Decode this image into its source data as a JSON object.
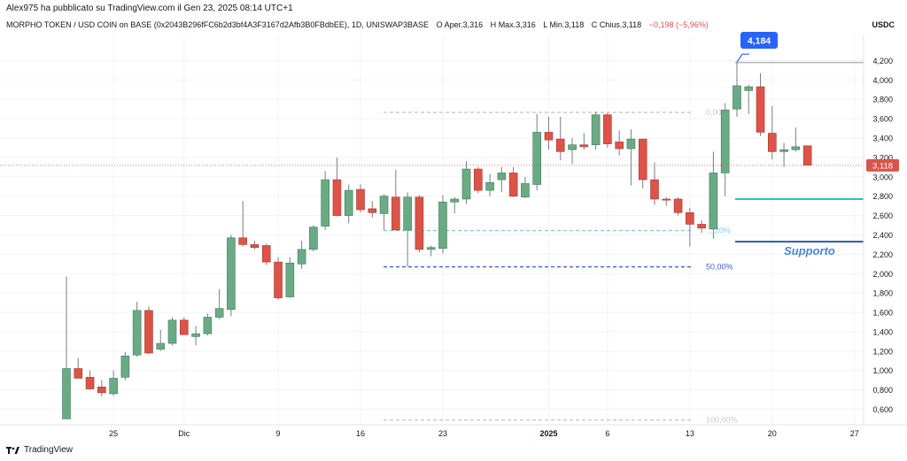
{
  "header": {
    "published_by": "Alex975 ha pubblicato su TradingView.com il Gen 23, 2025 08:14 UTC+1",
    "symbol": "MORPHO TOKEN / USD COIN on BASE (0x2043B296fFC6b2d3bf4A3F3167d2Afb3B0FBdbEE), 1D, UNISWAP3BASE",
    "open_label": "O",
    "open_value": "Aper.3,316",
    "high_label": "H",
    "high_value": "Max.3,316",
    "low_label": "L",
    "low_value": "Min.3,118",
    "close_label": "C",
    "close_value": "Chius.3,118",
    "change": "−0,198 (−5,96%)",
    "currency": "USDC"
  },
  "footer": {
    "brand": "TradingView",
    "brand_icon": "tradingview-logo-icon"
  },
  "colors": {
    "up": "#6aaa84",
    "down": "#dc5348",
    "support": "#2f5aa8",
    "teal": "#2cc3b5",
    "fib_blue": "#3a66c4"
  },
  "chart_data": {
    "type": "candlestick",
    "y_axis_ticks": [
      "4,200",
      "4,000",
      "3,800",
      "3,600",
      "3,400",
      "3,200",
      "3,000",
      "2,800",
      "2,600",
      "2,400",
      "2,200",
      "2,000",
      "1,800",
      "1,600",
      "1,400",
      "1,200",
      "1,000",
      "0,800",
      "0,600"
    ],
    "y_axis_values": [
      4.2,
      4.0,
      3.8,
      3.6,
      3.4,
      3.2,
      3.0,
      2.8,
      2.6,
      2.4,
      2.2,
      2.0,
      1.8,
      1.6,
      1.4,
      1.2,
      1.0,
      0.8,
      0.6
    ],
    "ylim": [
      0.44,
      4.46
    ],
    "x_axis_ticks": [
      {
        "label": "25",
        "index": 4
      },
      {
        "label": "Dic",
        "index": 10
      },
      {
        "label": "9",
        "index": 18
      },
      {
        "label": "16",
        "index": 25
      },
      {
        "label": "23",
        "index": 32
      },
      {
        "label": "2025",
        "index": 41,
        "bold": true
      },
      {
        "label": "6",
        "index": 46
      },
      {
        "label": "13",
        "index": 53
      },
      {
        "label": "20",
        "index": 60
      },
      {
        "label": "27",
        "index": 67
      }
    ],
    "candles": [
      {
        "o": 0.5,
        "h": 1.97,
        "l": 0.5,
        "c": 1.02
      },
      {
        "o": 1.02,
        "h": 1.13,
        "l": 0.93,
        "c": 0.92
      },
      {
        "o": 0.93,
        "h": 1.0,
        "l": 0.8,
        "c": 0.81
      },
      {
        "o": 0.83,
        "h": 0.9,
        "l": 0.73,
        "c": 0.77
      },
      {
        "o": 0.76,
        "h": 1.0,
        "l": 0.74,
        "c": 0.92
      },
      {
        "o": 0.93,
        "h": 1.19,
        "l": 0.9,
        "c": 1.15
      },
      {
        "o": 1.16,
        "h": 1.71,
        "l": 1.14,
        "c": 1.62
      },
      {
        "o": 1.62,
        "h": 1.66,
        "l": 1.17,
        "c": 1.18
      },
      {
        "o": 1.22,
        "h": 1.42,
        "l": 1.2,
        "c": 1.28
      },
      {
        "o": 1.28,
        "h": 1.55,
        "l": 1.26,
        "c": 1.52
      },
      {
        "o": 1.52,
        "h": 1.55,
        "l": 1.37,
        "c": 1.37
      },
      {
        "o": 1.35,
        "h": 1.46,
        "l": 1.26,
        "c": 1.38
      },
      {
        "o": 1.38,
        "h": 1.59,
        "l": 1.36,
        "c": 1.55
      },
      {
        "o": 1.55,
        "h": 1.84,
        "l": 1.53,
        "c": 1.64
      },
      {
        "o": 1.63,
        "h": 2.4,
        "l": 1.56,
        "c": 2.37
      },
      {
        "o": 2.37,
        "h": 2.75,
        "l": 2.28,
        "c": 2.3
      },
      {
        "o": 2.3,
        "h": 2.34,
        "l": 2.25,
        "c": 2.27
      },
      {
        "o": 2.29,
        "h": 2.31,
        "l": 2.09,
        "c": 2.12
      },
      {
        "o": 2.12,
        "h": 2.17,
        "l": 1.73,
        "c": 1.75
      },
      {
        "o": 1.76,
        "h": 2.17,
        "l": 1.75,
        "c": 2.11
      },
      {
        "o": 2.1,
        "h": 2.34,
        "l": 2.05,
        "c": 2.25
      },
      {
        "o": 2.25,
        "h": 2.5,
        "l": 2.23,
        "c": 2.48
      },
      {
        "o": 2.49,
        "h": 3.06,
        "l": 2.45,
        "c": 2.97
      },
      {
        "o": 2.97,
        "h": 3.2,
        "l": 2.59,
        "c": 2.6
      },
      {
        "o": 2.6,
        "h": 2.92,
        "l": 2.52,
        "c": 2.86
      },
      {
        "o": 2.87,
        "h": 2.92,
        "l": 2.63,
        "c": 2.66
      },
      {
        "o": 2.67,
        "h": 2.75,
        "l": 2.58,
        "c": 2.63
      },
      {
        "o": 2.62,
        "h": 2.82,
        "l": 2.45,
        "c": 2.8
      },
      {
        "o": 2.79,
        "h": 3.07,
        "l": 2.45,
        "c": 2.45
      },
      {
        "o": 2.45,
        "h": 2.84,
        "l": 2.07,
        "c": 2.79
      },
      {
        "o": 2.79,
        "h": 2.81,
        "l": 2.22,
        "c": 2.25
      },
      {
        "o": 2.25,
        "h": 2.29,
        "l": 2.18,
        "c": 2.27
      },
      {
        "o": 2.26,
        "h": 2.81,
        "l": 2.21,
        "c": 2.74
      },
      {
        "o": 2.74,
        "h": 2.79,
        "l": 2.62,
        "c": 2.77
      },
      {
        "o": 2.77,
        "h": 3.16,
        "l": 2.72,
        "c": 3.08
      },
      {
        "o": 3.08,
        "h": 3.1,
        "l": 2.83,
        "c": 2.86
      },
      {
        "o": 2.86,
        "h": 3.03,
        "l": 2.8,
        "c": 2.94
      },
      {
        "o": 2.97,
        "h": 3.1,
        "l": 2.84,
        "c": 3.04
      },
      {
        "o": 3.04,
        "h": 3.1,
        "l": 2.79,
        "c": 2.8
      },
      {
        "o": 2.79,
        "h": 3.0,
        "l": 2.78,
        "c": 2.93
      },
      {
        "o": 2.92,
        "h": 3.65,
        "l": 2.86,
        "c": 3.46
      },
      {
        "o": 3.46,
        "h": 3.62,
        "l": 3.28,
        "c": 3.38
      },
      {
        "o": 3.39,
        "h": 3.62,
        "l": 3.17,
        "c": 3.26
      },
      {
        "o": 3.28,
        "h": 3.4,
        "l": 3.13,
        "c": 3.33
      },
      {
        "o": 3.33,
        "h": 3.45,
        "l": 3.28,
        "c": 3.31
      },
      {
        "o": 3.33,
        "h": 3.67,
        "l": 3.28,
        "c": 3.64
      },
      {
        "o": 3.64,
        "h": 3.66,
        "l": 3.3,
        "c": 3.34
      },
      {
        "o": 3.36,
        "h": 3.48,
        "l": 3.22,
        "c": 3.29
      },
      {
        "o": 3.29,
        "h": 3.49,
        "l": 2.91,
        "c": 3.39
      },
      {
        "o": 3.39,
        "h": 3.39,
        "l": 2.88,
        "c": 2.97
      },
      {
        "o": 2.97,
        "h": 3.15,
        "l": 2.71,
        "c": 2.77
      },
      {
        "o": 2.77,
        "h": 2.79,
        "l": 2.7,
        "c": 2.76
      },
      {
        "o": 2.77,
        "h": 2.79,
        "l": 2.6,
        "c": 2.63
      },
      {
        "o": 2.63,
        "h": 2.68,
        "l": 2.28,
        "c": 2.51
      },
      {
        "o": 2.51,
        "h": 2.55,
        "l": 2.42,
        "c": 2.47
      },
      {
        "o": 2.46,
        "h": 3.26,
        "l": 2.36,
        "c": 3.04
      },
      {
        "o": 3.04,
        "h": 3.76,
        "l": 2.8,
        "c": 3.69
      },
      {
        "o": 3.7,
        "h": 4.18,
        "l": 3.62,
        "c": 3.94
      },
      {
        "o": 3.89,
        "h": 3.95,
        "l": 3.65,
        "c": 3.93
      },
      {
        "o": 3.93,
        "h": 4.07,
        "l": 3.42,
        "c": 3.46
      },
      {
        "o": 3.45,
        "h": 3.73,
        "l": 3.18,
        "c": 3.26
      },
      {
        "o": 3.26,
        "h": 3.35,
        "l": 3.1,
        "c": 3.28
      },
      {
        "o": 3.28,
        "h": 3.51,
        "l": 3.26,
        "c": 3.31
      },
      {
        "o": 3.32,
        "h": 3.32,
        "l": 3.12,
        "c": 3.12
      }
    ],
    "fib_levels": [
      {
        "label": "0,00%",
        "value": 3.665,
        "color": "#c8c8c8",
        "style": "dashed",
        "show_label": true
      },
      {
        "label": "...,20%",
        "value": 2.445,
        "color": "#7fd2e4",
        "style": "dashed",
        "show_label": true
      },
      {
        "label": "50,00%",
        "value": 2.07,
        "color": "#3a66c4",
        "style": "dashed",
        "show_label": true
      },
      {
        "label": "100,00%",
        "value": 0.49,
        "color": "#c8c8c8",
        "style": "dashed",
        "show_label": true
      }
    ],
    "horizontal_rays": [
      {
        "value": 4.18,
        "color": "#b0b3bb"
      },
      {
        "value": 2.77,
        "color": "#2cc3b5"
      },
      {
        "value": 2.33,
        "color": "#2f5aa8"
      }
    ],
    "annotations": {
      "high_label": "4,184",
      "high_value": 4.184,
      "support_label": "Supporto",
      "current_price_label": "3,118",
      "current_price_value": 3.118
    }
  }
}
